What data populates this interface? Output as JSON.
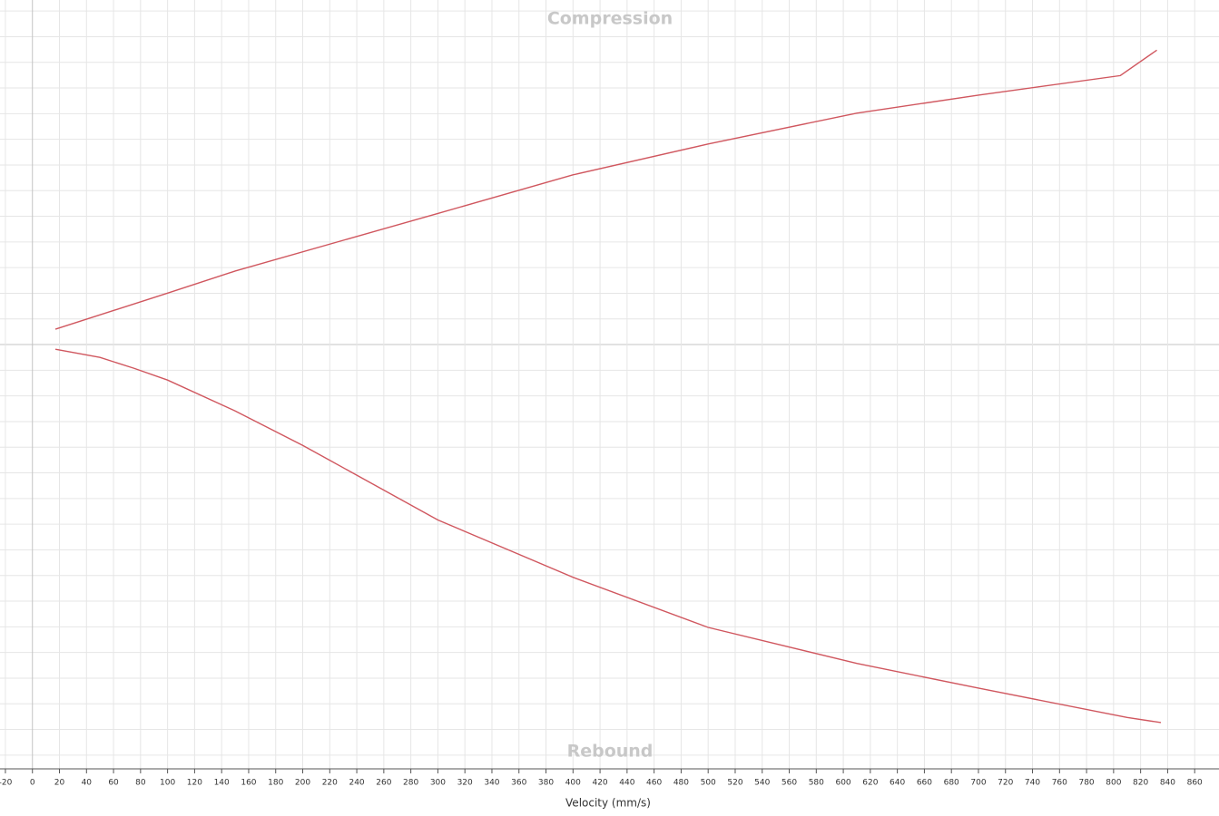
{
  "chart_data": {
    "type": "line",
    "title": "Compression",
    "subtitle": "Rebound",
    "x_label": "Velocity (mm/s)",
    "xlim": [
      -24,
      878
    ],
    "ylim": [
      -16.5,
      13.4
    ],
    "xticks": [
      -20,
      0,
      20,
      40,
      60,
      80,
      100,
      120,
      140,
      160,
      180,
      200,
      220,
      240,
      260,
      280,
      300,
      320,
      340,
      360,
      380,
      400,
      420,
      440,
      460,
      480,
      500,
      520,
      540,
      560,
      580,
      600,
      620,
      640,
      660,
      680,
      700,
      720,
      740,
      760,
      780,
      800,
      820,
      840,
      860
    ],
    "grid": true,
    "series": [
      {
        "color": "#d0575f",
        "x": [
          17,
          100,
          150,
          300,
          400,
          500,
          610,
          700,
          805,
          832
        ],
        "values": [
          0.6,
          2.0,
          2.86,
          5.1,
          6.6,
          7.8,
          9.0,
          9.7,
          10.46,
          11.45
        ]
      },
      {
        "color": "#d0575f",
        "x": [
          17,
          50,
          75,
          100,
          150,
          200,
          300,
          400,
          500,
          610,
          700,
          810,
          835
        ],
        "values": [
          -0.18,
          -0.5,
          -0.92,
          -1.38,
          -2.58,
          -3.92,
          -6.82,
          -9.05,
          -11.0,
          -12.4,
          -13.36,
          -14.5,
          -14.7
        ]
      }
    ]
  }
}
